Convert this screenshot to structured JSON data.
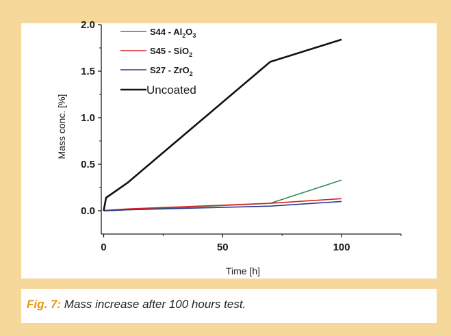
{
  "caption": {
    "label": "Fig. 7:",
    "text": " Mass increase after 100 hours test."
  },
  "colors": {
    "background": "#f7d89b",
    "accent": "#e8960b"
  },
  "chart_data": {
    "type": "line",
    "title": "",
    "xlabel": "Time [h]",
    "ylabel": "Mass conc. [%]",
    "xlim": [
      -1,
      125
    ],
    "ylim": [
      -0.25,
      2.0
    ],
    "xticks": [
      0,
      50,
      100
    ],
    "yticks": [
      0.0,
      0.5,
      1.0,
      1.5,
      2.0
    ],
    "xtick_labels": [
      "0",
      "50",
      "100"
    ],
    "ytick_labels": [
      "0.0",
      "0.5",
      "1.0",
      "1.5",
      "2.0"
    ],
    "grid": false,
    "legend_position": "top-left",
    "series": [
      {
        "name": "S44 - Al2O3",
        "legend_base": "S44 - Al",
        "legend_sub1": "2",
        "legend_mid": "O",
        "legend_sub2": "3",
        "color": "#2e8b57",
        "x": [
          0,
          1,
          10,
          70,
          100
        ],
        "y": [
          0.0,
          0.0,
          0.01,
          0.08,
          0.33
        ]
      },
      {
        "name": "S45 - SiO2",
        "legend_base": "S45 - SiO",
        "legend_sub1": "2",
        "color": "#e02020",
        "x": [
          0,
          1,
          10,
          70,
          100
        ],
        "y": [
          0.0,
          0.005,
          0.02,
          0.08,
          0.13
        ]
      },
      {
        "name": "S27 - ZrO2",
        "legend_base": "S27 - ZrO",
        "legend_sub1": "2",
        "color": "#2b3a8c",
        "x": [
          0,
          1,
          10,
          70,
          100
        ],
        "y": [
          0.0,
          0.0,
          0.01,
          0.05,
          0.1
        ]
      },
      {
        "name": "Uncoated",
        "legend_base": "Uncoated",
        "color": "#111111",
        "x": [
          0,
          1,
          10,
          70,
          100
        ],
        "y": [
          0.0,
          0.14,
          0.3,
          1.6,
          1.84
        ]
      }
    ]
  }
}
